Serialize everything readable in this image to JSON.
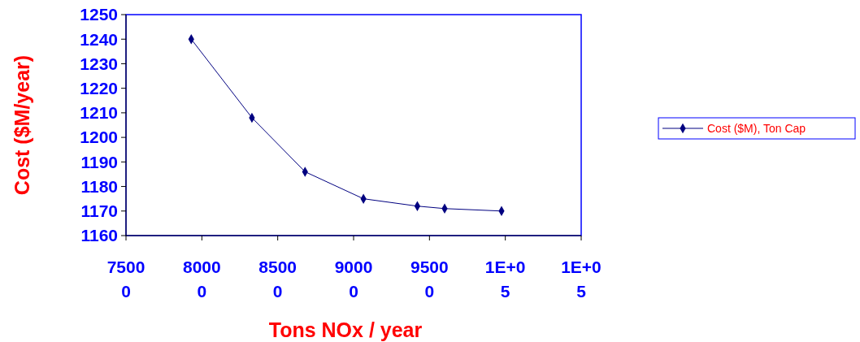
{
  "chart_data": {
    "type": "line",
    "xlabel": "Tons NOx / year",
    "ylabel": "Cost ($M/year)",
    "x": [
      79300,
      83300,
      86800,
      90650,
      94200,
      96000,
      99750
    ],
    "series": [
      {
        "name": "Cost ($M), Ton Cap",
        "color": "#000080",
        "values": [
          1240,
          1208,
          1186,
          1175,
          1172,
          1171,
          1170
        ]
      }
    ],
    "xlim": [
      75000,
      105000
    ],
    "xticks": [
      75000,
      80000,
      85000,
      90000,
      95000,
      {
        "value": 100000,
        "label": "1E+05"
      },
      {
        "value": 105000,
        "label": "1E+05"
      }
    ],
    "ylim": [
      1160,
      1250
    ],
    "yticks": [
      1160,
      1170,
      1180,
      1190,
      1200,
      1210,
      1220,
      1230,
      1240,
      1250
    ],
    "legend": "right",
    "marker": "diamond",
    "line_style": "solid",
    "grid": false
  }
}
